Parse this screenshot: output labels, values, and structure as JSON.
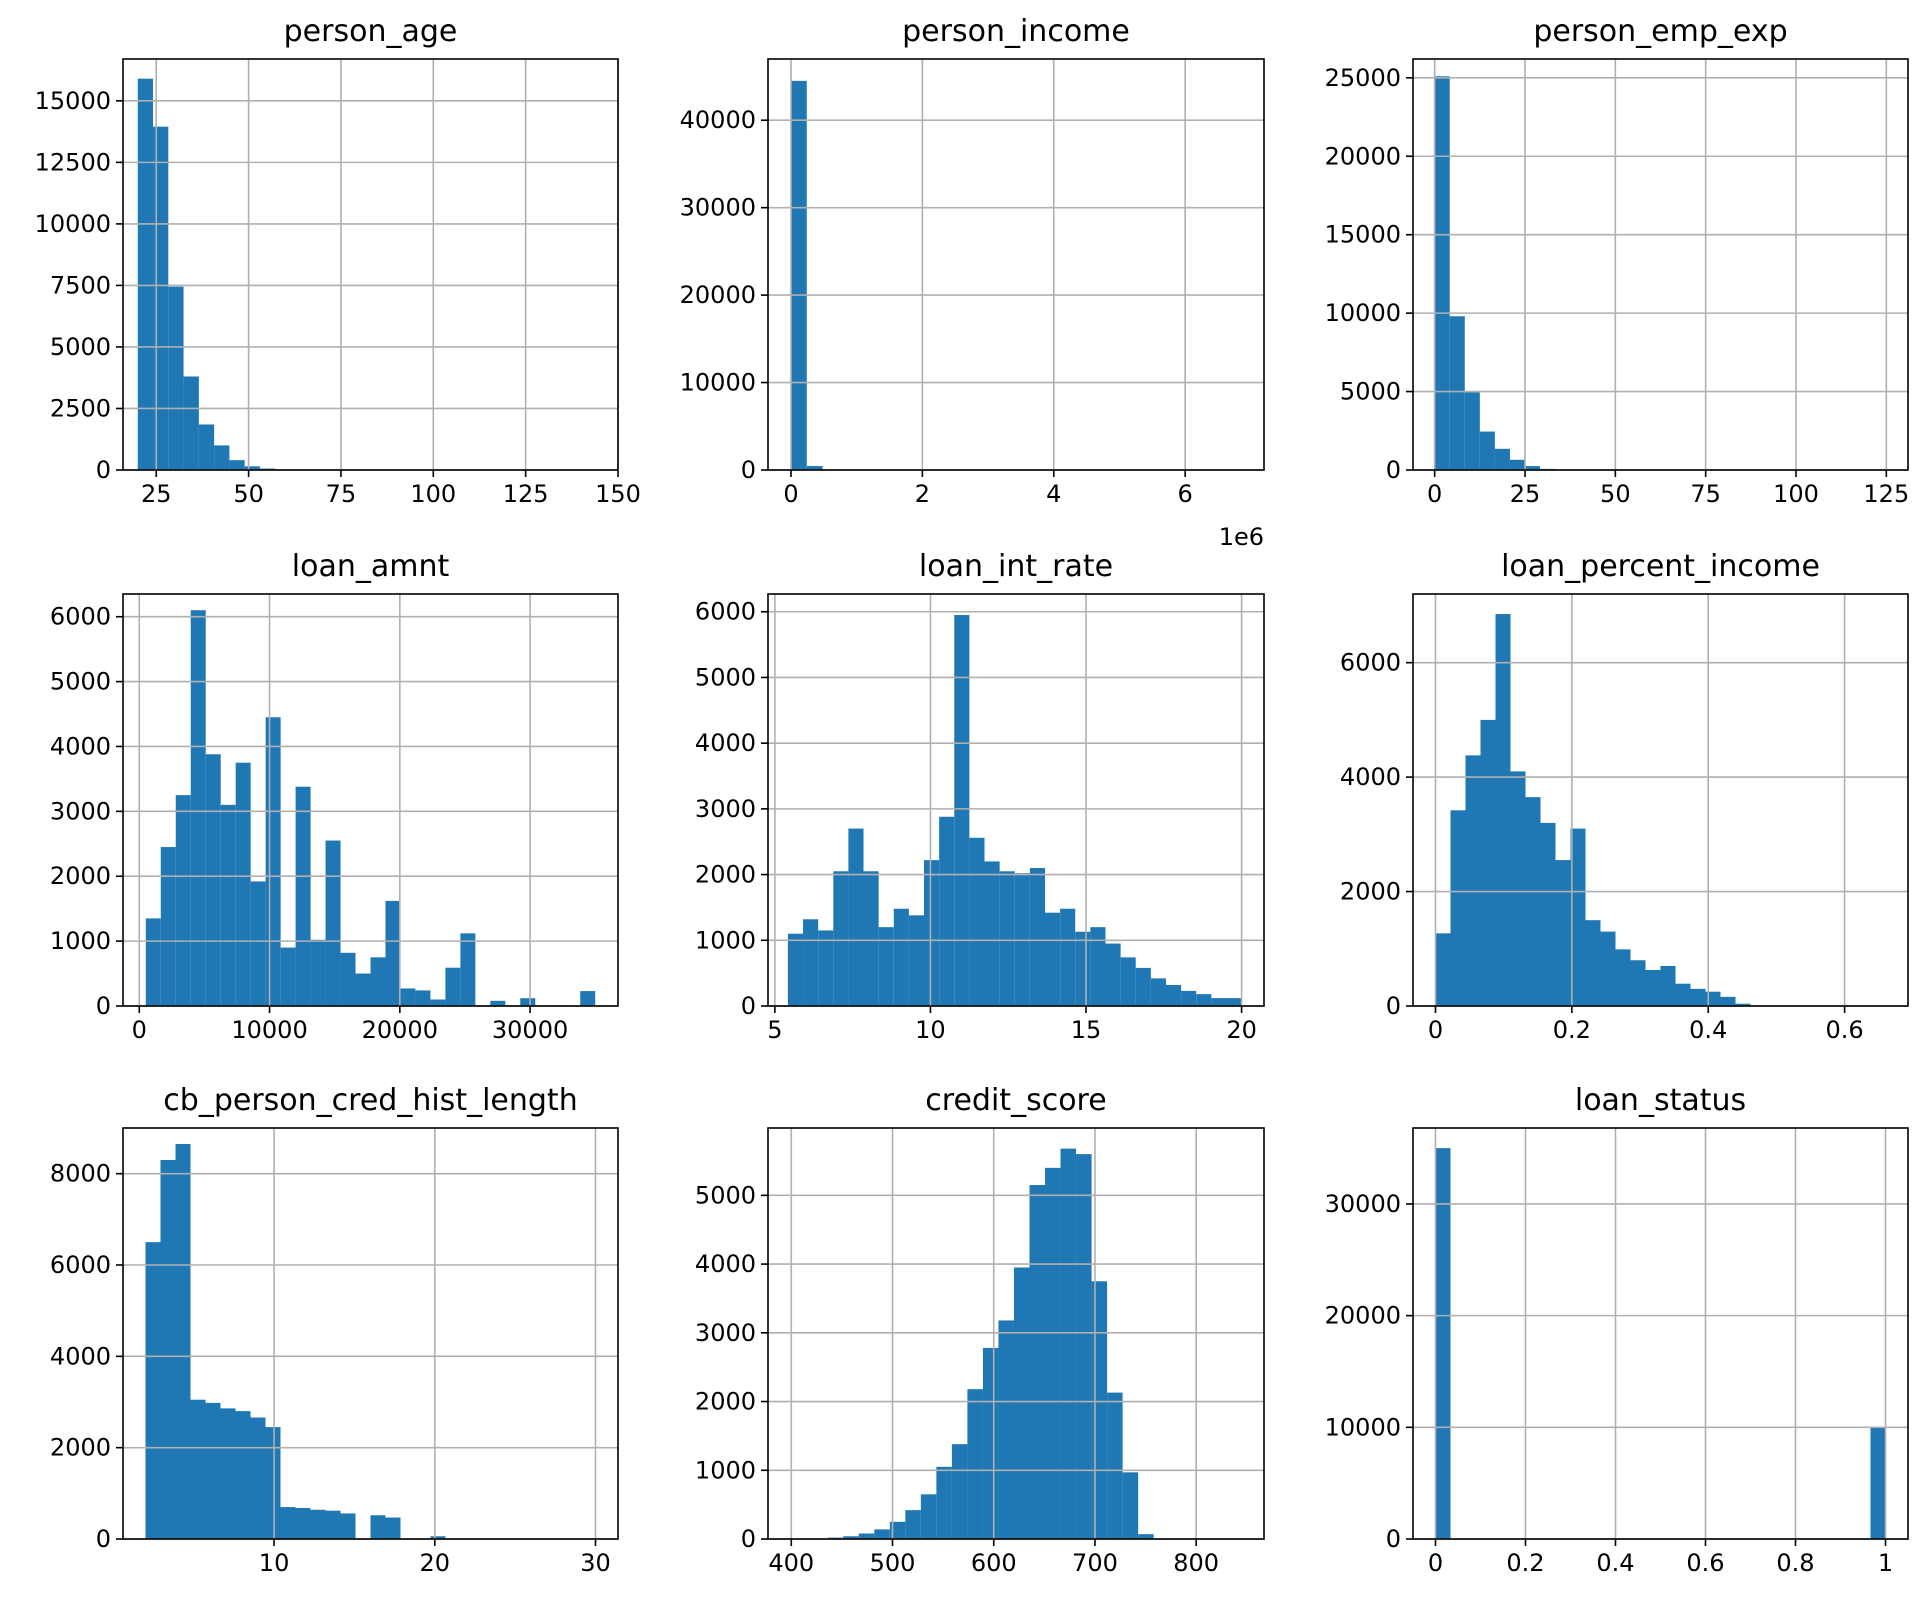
{
  "figure": {
    "bar_color": "#1f77b4",
    "grid": true,
    "layout": "3x3 grid of histograms"
  },
  "chart_data": [
    {
      "type": "bar",
      "title": "person_age",
      "xlim": [
        16,
        150
      ],
      "ylim": [
        0,
        16700
      ],
      "xticks": [
        25,
        50,
        75,
        100,
        125,
        150
      ],
      "yticks": [
        0,
        2500,
        5000,
        7500,
        10000,
        12500,
        15000
      ],
      "bins_start": 20,
      "bins_end": 144,
      "values": [
        15900,
        13950,
        7450,
        3800,
        1850,
        1000,
        400,
        150,
        60,
        20,
        0,
        0,
        0,
        0,
        0,
        0,
        0,
        0,
        0,
        0,
        0,
        0,
        0,
        0,
        0,
        0,
        0,
        0,
        0,
        0
      ]
    },
    {
      "type": "bar",
      "title": "person_income",
      "x_offset_label": "1e6",
      "xlim": [
        -0.35,
        7.2
      ],
      "ylim": [
        0,
        47000
      ],
      "xticks": [
        0,
        2,
        4,
        6
      ],
      "yticks": [
        0,
        10000,
        20000,
        30000,
        40000
      ],
      "bins_start": 0,
      "bins_end": 7.2,
      "values": [
        44500,
        450,
        40,
        10,
        5,
        0,
        0,
        0,
        0,
        0,
        0,
        0,
        0,
        0,
        0,
        0,
        0,
        0,
        0,
        0,
        0,
        0,
        0,
        0,
        0,
        0,
        0,
        0,
        0,
        0
      ]
    },
    {
      "type": "bar",
      "title": "person_emp_exp",
      "xlim": [
        -6,
        131
      ],
      "ylim": [
        0,
        26200
      ],
      "xticks": [
        0,
        25,
        50,
        75,
        100,
        125
      ],
      "yticks": [
        0,
        5000,
        10000,
        15000,
        20000,
        25000
      ],
      "bins_start": 0,
      "bins_end": 125,
      "values": [
        25100,
        9800,
        4950,
        2450,
        1350,
        650,
        250,
        70,
        25,
        10,
        5,
        0,
        0,
        0,
        0,
        0,
        0,
        0,
        0,
        0,
        0,
        0,
        0,
        0,
        0,
        0,
        0,
        0,
        0,
        0
      ]
    },
    {
      "type": "bar",
      "title": "loan_amnt",
      "xlim": [
        -1250,
        36750
      ],
      "ylim": [
        0,
        6350
      ],
      "xticks": [
        0,
        10000,
        20000,
        30000
      ],
      "yticks": [
        0,
        1000,
        2000,
        3000,
        4000,
        5000,
        6000
      ],
      "bins_start": 500,
      "bins_end": 35000,
      "values": [
        1350,
        2450,
        3250,
        6100,
        3880,
        3100,
        3750,
        1920,
        4450,
        900,
        3380,
        1020,
        2550,
        820,
        500,
        750,
        1620,
        270,
        240,
        100,
        590,
        1120,
        10,
        80,
        10,
        120,
        5,
        10,
        5,
        230
      ]
    },
    {
      "type": "bar",
      "title": "loan_int_rate",
      "xlim": [
        4.78,
        20.72
      ],
      "ylim": [
        0,
        6270
      ],
      "xticks": [
        5,
        10,
        15,
        20
      ],
      "yticks": [
        0,
        1000,
        2000,
        3000,
        4000,
        5000,
        6000
      ],
      "bins_start": 5.42,
      "bins_end": 20.0,
      "values": [
        1100,
        1320,
        1150,
        2050,
        2700,
        2050,
        1200,
        1480,
        1380,
        2220,
        2880,
        5950,
        2560,
        2200,
        2050,
        2020,
        2100,
        1420,
        1480,
        1130,
        1200,
        950,
        740,
        580,
        420,
        320,
        230,
        180,
        120,
        120
      ]
    },
    {
      "type": "bar",
      "title": "loan_percent_income",
      "xlim": [
        -0.033,
        0.693
      ],
      "ylim": [
        0,
        7200
      ],
      "xticks": [
        0.0,
        0.2,
        0.4,
        0.6
      ],
      "yticks": [
        0,
        2000,
        4000,
        6000
      ],
      "bins_start": 0,
      "bins_end": 0.66,
      "values": [
        1270,
        3420,
        4380,
        5000,
        6850,
        4100,
        3650,
        3200,
        2550,
        3100,
        1500,
        1300,
        990,
        800,
        630,
        700,
        390,
        300,
        250,
        160,
        40,
        10,
        5,
        2,
        0,
        0,
        0,
        0,
        0,
        0
      ]
    },
    {
      "type": "bar",
      "title": "cb_person_cred_hist_length",
      "xlim": [
        0.6,
        31.4
      ],
      "ylim": [
        0,
        9000
      ],
      "xticks": [
        10,
        20,
        30
      ],
      "yticks": [
        0,
        2000,
        4000,
        6000,
        8000
      ],
      "bins_start": 2,
      "bins_end": 30,
      "values": [
        6500,
        8300,
        8650,
        3050,
        2980,
        2860,
        2800,
        2660,
        2450,
        700,
        680,
        640,
        620,
        560,
        0,
        520,
        470,
        0,
        0,
        60,
        10,
        5,
        0,
        0,
        0,
        0,
        0,
        0,
        0,
        0
      ]
    },
    {
      "type": "bar",
      "title": "credit_score",
      "xlim": [
        377,
        867
      ],
      "ylim": [
        0,
        5980
      ],
      "xticks": [
        400,
        500,
        600,
        700,
        800
      ],
      "yticks": [
        0,
        1000,
        2000,
        3000,
        4000,
        5000
      ],
      "bins_start": 390,
      "bins_end": 850,
      "values": [
        0,
        0,
        5,
        20,
        40,
        80,
        140,
        250,
        420,
        650,
        1050,
        1380,
        2180,
        2780,
        3180,
        3950,
        5150,
        5400,
        5680,
        5600,
        3750,
        2130,
        970,
        70,
        5,
        0,
        0,
        0,
        0,
        0
      ]
    },
    {
      "type": "bar",
      "title": "loan_status",
      "xlim": [
        -0.05,
        1.05
      ],
      "ylim": [
        0,
        36800
      ],
      "xticks": [
        0.0,
        0.2,
        0.4,
        0.6,
        0.8,
        1.0
      ],
      "yticks": [
        0,
        10000,
        20000,
        30000
      ],
      "bins_start": 0,
      "bins_end": 1,
      "values": [
        35000,
        0,
        0,
        0,
        0,
        0,
        0,
        0,
        0,
        0,
        0,
        0,
        0,
        0,
        0,
        0,
        0,
        0,
        0,
        0,
        0,
        0,
        0,
        0,
        0,
        0,
        0,
        0,
        0,
        10000
      ]
    }
  ]
}
